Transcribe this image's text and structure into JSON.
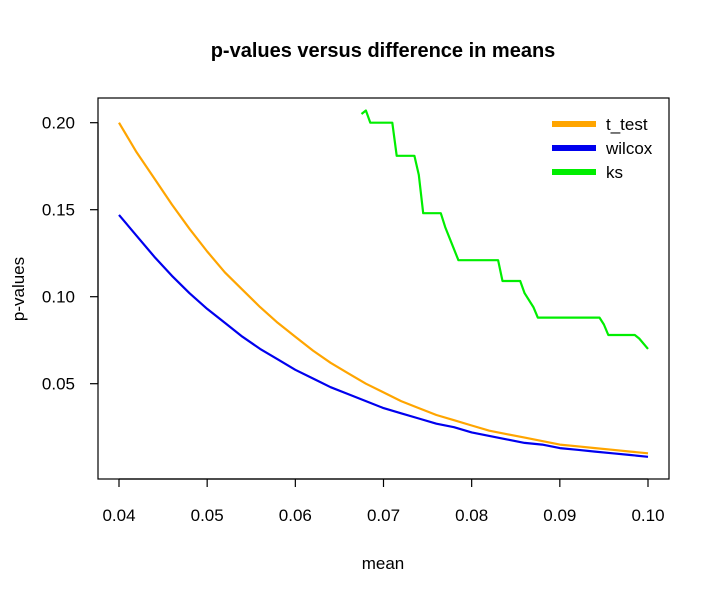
{
  "chart_data": {
    "type": "line",
    "title": "p-values versus difference in means",
    "xlabel": "mean",
    "ylabel": "p-values",
    "xlim": [
      0.04,
      0.1
    ],
    "ylim": [
      0.005,
      0.205
    ],
    "xticks": [
      0.04,
      0.05,
      0.06,
      0.07,
      0.08,
      0.09,
      0.1
    ],
    "xtick_labels": [
      "0.04",
      "0.05",
      "0.06",
      "0.07",
      "0.08",
      "0.09",
      "0.10"
    ],
    "yticks": [
      0.05,
      0.1,
      0.15,
      0.2
    ],
    "ytick_labels": [
      "0.05",
      "0.10",
      "0.15",
      "0.20"
    ],
    "grid": false,
    "legend_position": "top-right",
    "series": [
      {
        "name": "t_test",
        "color": "#ffa500",
        "x": [
          0.04,
          0.042,
          0.044,
          0.046,
          0.048,
          0.05,
          0.052,
          0.054,
          0.056,
          0.058,
          0.06,
          0.062,
          0.064,
          0.066,
          0.068,
          0.07,
          0.072,
          0.074,
          0.076,
          0.078,
          0.08,
          0.082,
          0.084,
          0.086,
          0.088,
          0.09,
          0.092,
          0.094,
          0.096,
          0.098,
          0.1
        ],
        "y": [
          0.2,
          0.183,
          0.168,
          0.153,
          0.139,
          0.126,
          0.114,
          0.104,
          0.094,
          0.085,
          0.077,
          0.069,
          0.062,
          0.056,
          0.05,
          0.045,
          0.04,
          0.036,
          0.032,
          0.029,
          0.026,
          0.023,
          0.021,
          0.019,
          0.017,
          0.015,
          0.014,
          0.013,
          0.012,
          0.011,
          0.01
        ]
      },
      {
        "name": "wilcox",
        "color": "#0000ee",
        "x": [
          0.04,
          0.042,
          0.044,
          0.046,
          0.048,
          0.05,
          0.052,
          0.054,
          0.056,
          0.058,
          0.06,
          0.062,
          0.064,
          0.066,
          0.068,
          0.07,
          0.072,
          0.074,
          0.076,
          0.078,
          0.08,
          0.082,
          0.084,
          0.086,
          0.088,
          0.09,
          0.092,
          0.094,
          0.096,
          0.098,
          0.1
        ],
        "y": [
          0.147,
          0.135,
          0.123,
          0.112,
          0.102,
          0.093,
          0.085,
          0.077,
          0.07,
          0.064,
          0.058,
          0.053,
          0.048,
          0.044,
          0.04,
          0.036,
          0.033,
          0.03,
          0.027,
          0.025,
          0.022,
          0.02,
          0.018,
          0.016,
          0.015,
          0.013,
          0.012,
          0.011,
          0.01,
          0.009,
          0.008
        ]
      },
      {
        "name": "ks",
        "color": "#00ee00",
        "x": [
          0.0675,
          0.068,
          0.0685,
          0.071,
          0.0715,
          0.0735,
          0.074,
          0.0745,
          0.0765,
          0.077,
          0.0785,
          0.079,
          0.083,
          0.0835,
          0.0845,
          0.0855,
          0.086,
          0.087,
          0.0875,
          0.0885,
          0.0945,
          0.095,
          0.0955,
          0.0985,
          0.099,
          0.1
        ],
        "y": [
          0.205,
          0.207,
          0.2,
          0.2,
          0.181,
          0.181,
          0.17,
          0.148,
          0.148,
          0.14,
          0.121,
          0.121,
          0.121,
          0.109,
          0.109,
          0.109,
          0.102,
          0.094,
          0.088,
          0.088,
          0.088,
          0.084,
          0.078,
          0.078,
          0.076,
          0.07
        ]
      }
    ]
  }
}
